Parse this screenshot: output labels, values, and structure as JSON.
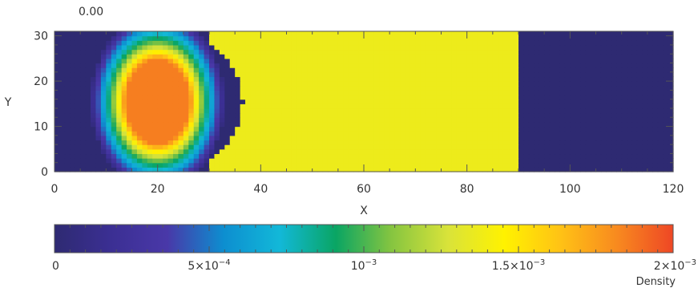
{
  "chart_data": {
    "type": "heatmap",
    "time_label": "0.00",
    "xlabel": "X",
    "ylabel": "Y",
    "xlim": [
      0,
      120
    ],
    "ylim": [
      0,
      31
    ],
    "x_ticks": [
      "0",
      "20",
      "40",
      "60",
      "80",
      "100",
      "120"
    ],
    "y_ticks": [
      "0",
      "10",
      "20",
      "30"
    ],
    "grid": false,
    "field": {
      "background_density": 0.0,
      "regions": [
        {
          "shape": "ellipse-halo",
          "center": [
            20,
            15.5
          ],
          "radii": [
            16.5,
            16.5
          ],
          "core_radii": [
            6.2,
            9.3
          ],
          "core_density": 0.00185,
          "halo_profile": [
            0.00185,
            0.0014,
            0.001,
            0.0007,
            0.0004,
            8e-05
          ]
        },
        {
          "shape": "band",
          "x_range": [
            30.5,
            90.5
          ],
          "density": 0.00137
        }
      ]
    },
    "colorbar": {
      "label": "Density",
      "range": [
        0,
        0.002
      ],
      "tick_values": [
        0,
        0.0005,
        0.001,
        0.0015,
        0.002
      ],
      "tick_labels": [
        {
          "base": "0",
          "exp": ""
        },
        {
          "base": "5×10",
          "exp": "−4"
        },
        {
          "base": "10",
          "exp": "−3"
        },
        {
          "base": "1.5×10",
          "exp": "−3"
        },
        {
          "base": "2×10",
          "exp": "−3"
        }
      ],
      "colors": [
        "#2e2a72",
        "#3b2f93",
        "#4938a8",
        "#0d8ed0",
        "#12b8d8",
        "#0aa563",
        "#86c540",
        "#d9e33a",
        "#fff200",
        "#ffc215",
        "#f88a1f",
        "#ee4725"
      ]
    }
  }
}
